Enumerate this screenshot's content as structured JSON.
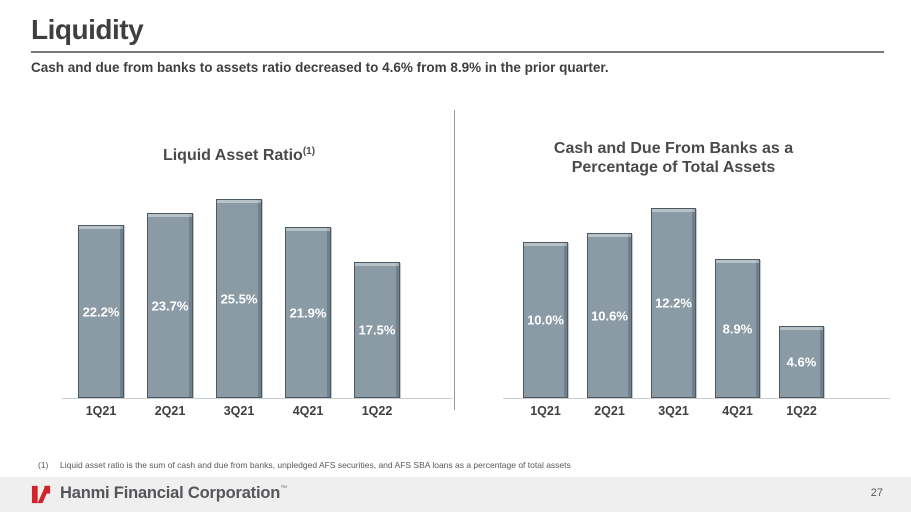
{
  "header": {
    "title": "Liquidity",
    "subtitle": "Cash and due from banks to assets ratio decreased to 4.6% from 8.9% in the prior quarter."
  },
  "chart_data": [
    {
      "type": "bar",
      "title": "Liquid Asset Ratio",
      "title_superscript": "(1)",
      "categories": [
        "1Q21",
        "2Q21",
        "3Q21",
        "4Q21",
        "1Q22"
      ],
      "values": [
        22.2,
        23.7,
        25.5,
        21.9,
        17.5
      ],
      "value_labels": [
        "22.2%",
        "23.7%",
        "25.5%",
        "21.9%",
        "17.5%"
      ],
      "ylabel": "",
      "xlabel": "",
      "ylim": [
        0,
        28
      ],
      "grid": false,
      "legend": "none",
      "bar_color": "#8a9ba6",
      "label_color": "#ffffff"
    },
    {
      "type": "bar",
      "title": "Cash and Due From Banks as a Percentage of Total Assets",
      "title_lines": [
        "Cash and Due From Banks as a",
        "Percentage of Total Assets"
      ],
      "categories": [
        "1Q21",
        "2Q21",
        "3Q21",
        "4Q21",
        "1Q22"
      ],
      "values": [
        10.0,
        10.6,
        12.2,
        8.9,
        4.6
      ],
      "value_labels": [
        "10.0%",
        "10.6%",
        "12.2%",
        "8.9%",
        "4.6%"
      ],
      "ylabel": "",
      "xlabel": "",
      "ylim": [
        0,
        14
      ],
      "grid": false,
      "legend": "none",
      "bar_color": "#8a9ba6",
      "label_color": "#ffffff"
    }
  ],
  "footnote": {
    "marker": "(1)",
    "text": "Liquid asset ratio is the sum of cash and due from banks, unpledged AFS securities, and AFS SBA loans as a percentage of total assets"
  },
  "footer": {
    "company": "Hanmi Financial Corporation",
    "trademark": "™",
    "page_number": "27",
    "logo_color": "#d2232a"
  }
}
